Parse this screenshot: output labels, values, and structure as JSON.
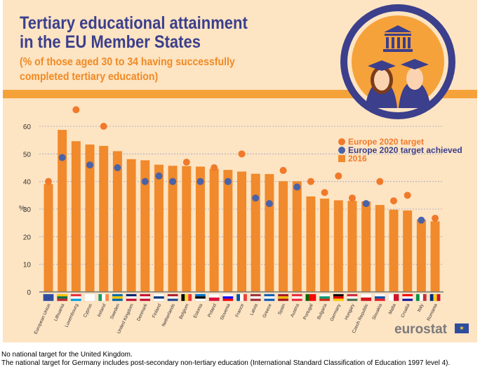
{
  "header": {
    "title_line1": "Tertiary educational attainment",
    "title_line2": "in the EU Member States",
    "subtitle_line1": "(% of those aged 30 to 34 having successfully",
    "subtitle_line2": "completed tertiary education)"
  },
  "colors": {
    "bar": "#f08a2c",
    "target": "#f07a2a",
    "achieved": "#4a62a8",
    "title": "#3b3f8c",
    "grid": "#9aa3c8"
  },
  "chart_data": {
    "type": "bar",
    "ylabel": "%",
    "ylim": [
      0,
      65
    ],
    "yticks": [
      0,
      10,
      20,
      30,
      40,
      50,
      60
    ],
    "grid": true,
    "legend_position": "top-right",
    "legend": [
      "Europe 2020 target",
      "Europe 2020 target achieved",
      "2016"
    ],
    "categories": [
      "European Union",
      "Lithuania",
      "Luxembourg",
      "Cyprus",
      "Ireland",
      "Sweden",
      "United Kingdom",
      "Denmark",
      "Finland",
      "Netherlands",
      "Belgium",
      "Estonia",
      "Poland",
      "Slovenia",
      "France",
      "Latvia",
      "Greece",
      "Spain",
      "Austria",
      "Portugal",
      "Bulgaria",
      "Germany",
      "Hungary",
      "Czech Republic",
      "Slovakia",
      "Malta",
      "Croatia",
      "Italy",
      "Romania"
    ],
    "series": [
      {
        "name": "2016",
        "type": "bar",
        "values": [
          39.1,
          58.7,
          54.6,
          53.4,
          52.9,
          51.0,
          48.1,
          47.7,
          46.1,
          45.7,
          45.6,
          45.4,
          44.6,
          44.2,
          43.6,
          42.8,
          42.7,
          40.1,
          40.1,
          34.6,
          33.8,
          33.2,
          33.0,
          32.8,
          31.5,
          29.8,
          29.5,
          26.2,
          25.6
        ]
      },
      {
        "name": "Europe 2020 target",
        "type": "scatter",
        "values": [
          40,
          48.7,
          66,
          46,
          60,
          45,
          null,
          40,
          42,
          40,
          47,
          40,
          45,
          40,
          50,
          34,
          32,
          44,
          38,
          40,
          36,
          42,
          34,
          32,
          40,
          33,
          35,
          26,
          26.7
        ],
        "achieved": [
          false,
          true,
          false,
          true,
          false,
          true,
          null,
          true,
          true,
          true,
          false,
          true,
          false,
          true,
          false,
          true,
          true,
          false,
          true,
          false,
          false,
          false,
          false,
          true,
          false,
          false,
          false,
          true,
          false
        ]
      }
    ],
    "flags": [
      [
        "#2f4d9e"
      ],
      [
        "#f8c300",
        "#006a44",
        "#c1272d"
      ],
      [
        "#ed2939",
        "#fff",
        "#00a1de"
      ],
      [
        "#fff",
        "#fff",
        "#fff"
      ],
      [
        "v",
        "#169b62",
        "#fff",
        "#ff883e"
      ],
      [
        "#006aa7",
        "#fecc00",
        "#006aa7"
      ],
      [
        "#012169",
        "#fff",
        "#c8102e"
      ],
      [
        "#c8102e",
        "#fff",
        "#c8102e"
      ],
      [
        "#fff",
        "#003580",
        "#fff"
      ],
      [
        "#ae1c28",
        "#fff",
        "#21468b"
      ],
      [
        "v",
        "#000",
        "#fdda24",
        "#ef3340"
      ],
      [
        "#0072ce",
        "#000",
        "#fff"
      ],
      [
        "#fff",
        "#dc143c"
      ],
      [
        "#fff",
        "#0000ff",
        "#ff0000"
      ],
      [
        "v",
        "#0055a4",
        "#fff",
        "#ef4135"
      ],
      [
        "#9e3039",
        "#fff",
        "#9e3039"
      ],
      [
        "#0d5eaf",
        "#fff",
        "#0d5eaf"
      ],
      [
        "#aa151b",
        "#f1bf00",
        "#aa151b"
      ],
      [
        "#ed2939",
        "#fff",
        "#ed2939"
      ],
      [
        "v",
        "#006600",
        "#ff0000",
        "#ff0000"
      ],
      [
        "#fff",
        "#00966e",
        "#d62612"
      ],
      [
        "#000",
        "#dd0000",
        "#ffce00"
      ],
      [
        "#ce2939",
        "#fff",
        "#477050"
      ],
      [
        "#fff",
        "#d7141a"
      ],
      [
        "#fff",
        "#0b4ea2",
        "#ee1c25"
      ],
      [
        "v",
        "#fff",
        "#cf142b"
      ],
      [
        "#ff0000",
        "#fff",
        "#171796"
      ],
      [
        "v",
        "#009246",
        "#fff",
        "#ce2b37"
      ],
      [
        "v",
        "#002b7f",
        "#fcd116",
        "#ce1126"
      ]
    ]
  },
  "logo": "eurostat",
  "footnotes": [
    "No national target for the United Kingdom.",
    "The national target for Germany includes post-secondary non-tertiary education (International Standard Classification of Education 1997 level 4)."
  ]
}
